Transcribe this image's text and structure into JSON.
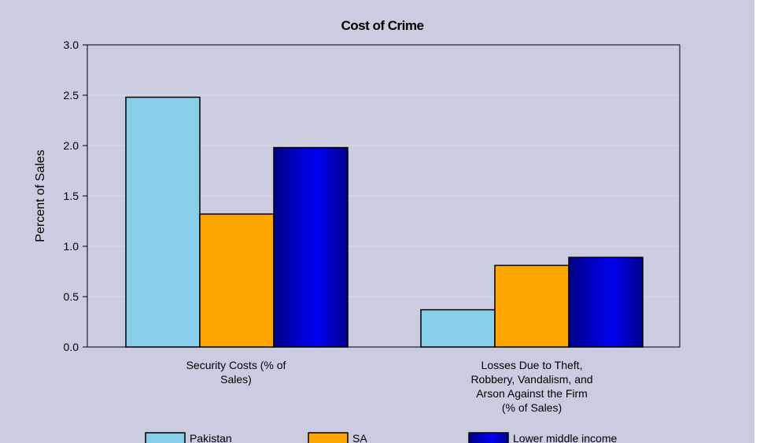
{
  "chart_data": {
    "type": "bar",
    "title": "Cost of Crime",
    "xlabel": "",
    "ylabel": "Percent of Sales",
    "ylim": [
      0,
      3.0
    ],
    "yticks": [
      "0.0",
      "0.5",
      "1.0",
      "1.5",
      "2.0",
      "2.5",
      "3.0"
    ],
    "grid": true,
    "legend_position": "bottom",
    "categories": [
      [
        "Security Costs (% of",
        "Sales)"
      ],
      [
        "Losses Due to Theft,",
        "Robbery, Vandalism, and",
        "Arson Against the Firm",
        "(% of Sales)"
      ]
    ],
    "series": [
      {
        "name": "Pakistan",
        "values": [
          2.48,
          0.37
        ],
        "color": "#87ceeb"
      },
      {
        "name": "SA",
        "values": [
          1.32,
          0.81
        ],
        "color": "#ffa500"
      },
      {
        "name": "Lower middle income",
        "values": [
          1.98,
          0.89
        ],
        "color": "#0000cd"
      }
    ]
  }
}
